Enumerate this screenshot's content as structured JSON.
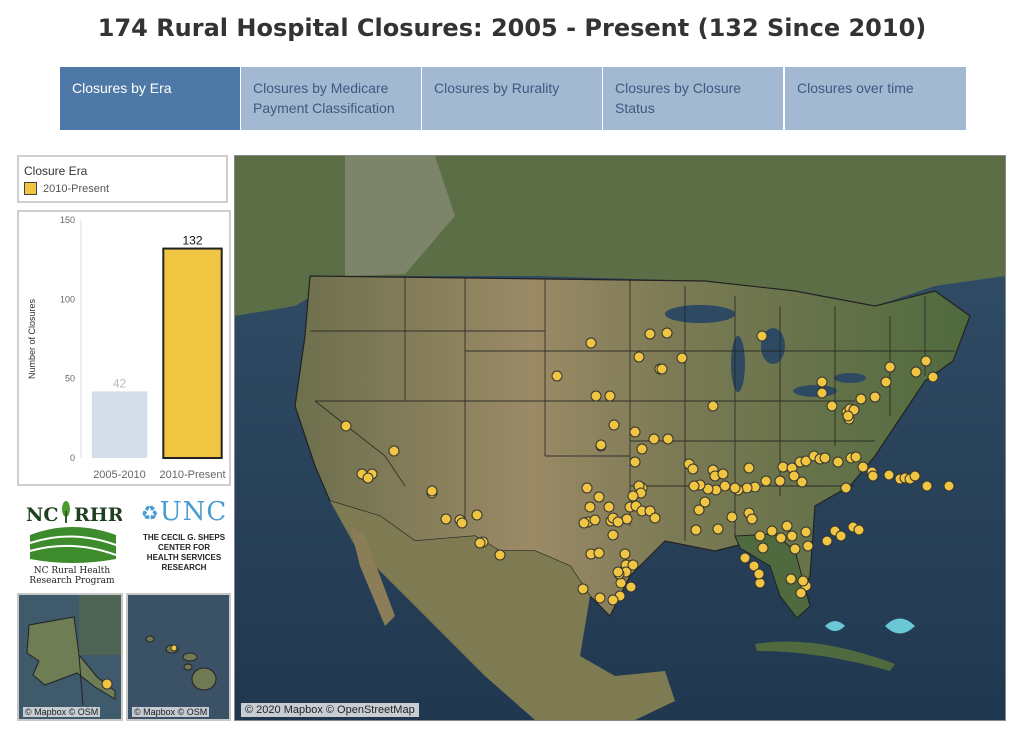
{
  "title": "174 Rural Hospital Closures: 2005 - Present (132 Since 2010)",
  "tabs": [
    {
      "label": "Closures by Era",
      "active": true
    },
    {
      "label": "Closures by Medicare Payment Classification",
      "active": false
    },
    {
      "label": "Closures by Rurality",
      "active": false
    },
    {
      "label": "Closures by Closure Status",
      "active": false
    },
    {
      "label": "Closures over time",
      "active": false
    }
  ],
  "legend": {
    "title": "Closure Era",
    "item": "2010-Present",
    "color": "#f0c541"
  },
  "chart_data": {
    "type": "bar",
    "categories": [
      "2005-2010",
      "2010-Present"
    ],
    "values": [
      42,
      132
    ],
    "ylabel": "Number of Closures",
    "ylim": [
      0,
      150
    ],
    "yticks": [
      0,
      50,
      100,
      150
    ],
    "colors": [
      "#d5dee8",
      "#f0c541"
    ],
    "data_labels": [
      "42",
      "132"
    ],
    "grid": false
  },
  "logos": {
    "ncrhrp_name": "NC RHRP",
    "ncrhrp_sub1": "NC Rural Health",
    "ncrhrp_sub2": "Research Program",
    "unc_name": "UNC",
    "unc_sub": [
      "THE CECIL G. SHEPS",
      "CENTER FOR",
      "HEALTH SERVICES",
      "RESEARCH"
    ]
  },
  "insets": {
    "alaska_credit": "© Mapbox © OSM",
    "hawaii_credit": "© Mapbox © OSM"
  },
  "map": {
    "credit": "© 2020 Mapbox © OpenStreetMap",
    "marker_color": "#f0c541"
  }
}
